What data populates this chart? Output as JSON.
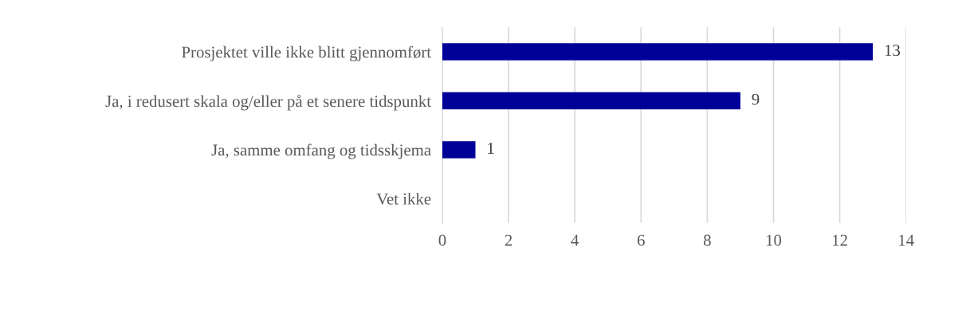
{
  "chart_data": {
    "type": "bar",
    "orientation": "horizontal",
    "categories": [
      "Prosjektet ville ikke blitt gjennomført",
      "Ja, i redusert skala og/eller på et senere tidspunkt",
      "Ja, samme omfang og tidsskjema",
      "Vet ikke"
    ],
    "values": [
      13,
      9,
      1,
      0
    ],
    "value_labels": [
      "13",
      "9",
      "1",
      null
    ],
    "color": "#000099",
    "xlim": [
      0,
      14
    ],
    "xticks": [
      0,
      2,
      4,
      6,
      8,
      10,
      12,
      14
    ],
    "grid": "x",
    "legend": false
  }
}
